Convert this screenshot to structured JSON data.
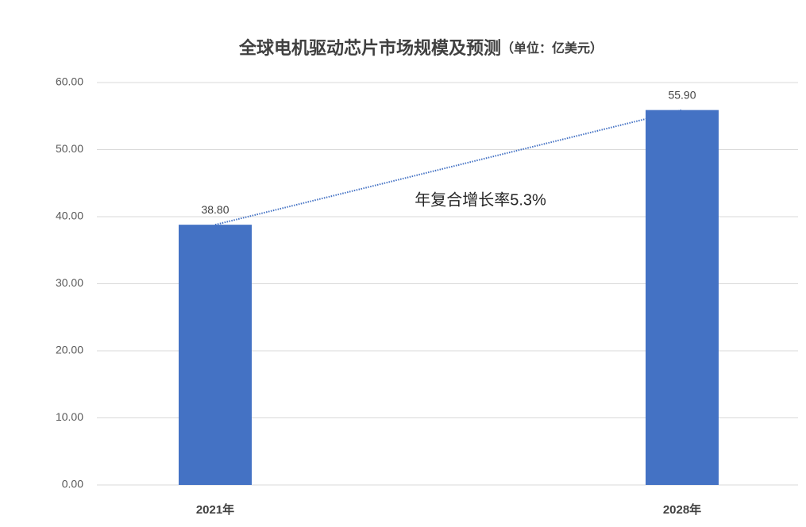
{
  "chart_data": {
    "type": "bar",
    "title": "全球电机驱动芯片市场规模及预测",
    "subtitle": "（单位：亿美元）",
    "categories": [
      "2021年",
      "2028年"
    ],
    "values": [
      38.8,
      55.9
    ],
    "value_labels": [
      "38.80",
      "55.90"
    ],
    "color": "#4472c4",
    "ylim": [
      0,
      60
    ],
    "yticks": [
      {
        "value": 0,
        "label": "0.00"
      },
      {
        "value": 10,
        "label": "10.00"
      },
      {
        "value": 20,
        "label": "20.00"
      },
      {
        "value": 30,
        "label": "30.00"
      },
      {
        "value": 40,
        "label": "40.00"
      },
      {
        "value": 50,
        "label": "50.00"
      },
      {
        "value": 60,
        "label": "60.00"
      }
    ],
    "grid": true,
    "trendline": true,
    "annotation": "年复合增长率5.3%"
  }
}
